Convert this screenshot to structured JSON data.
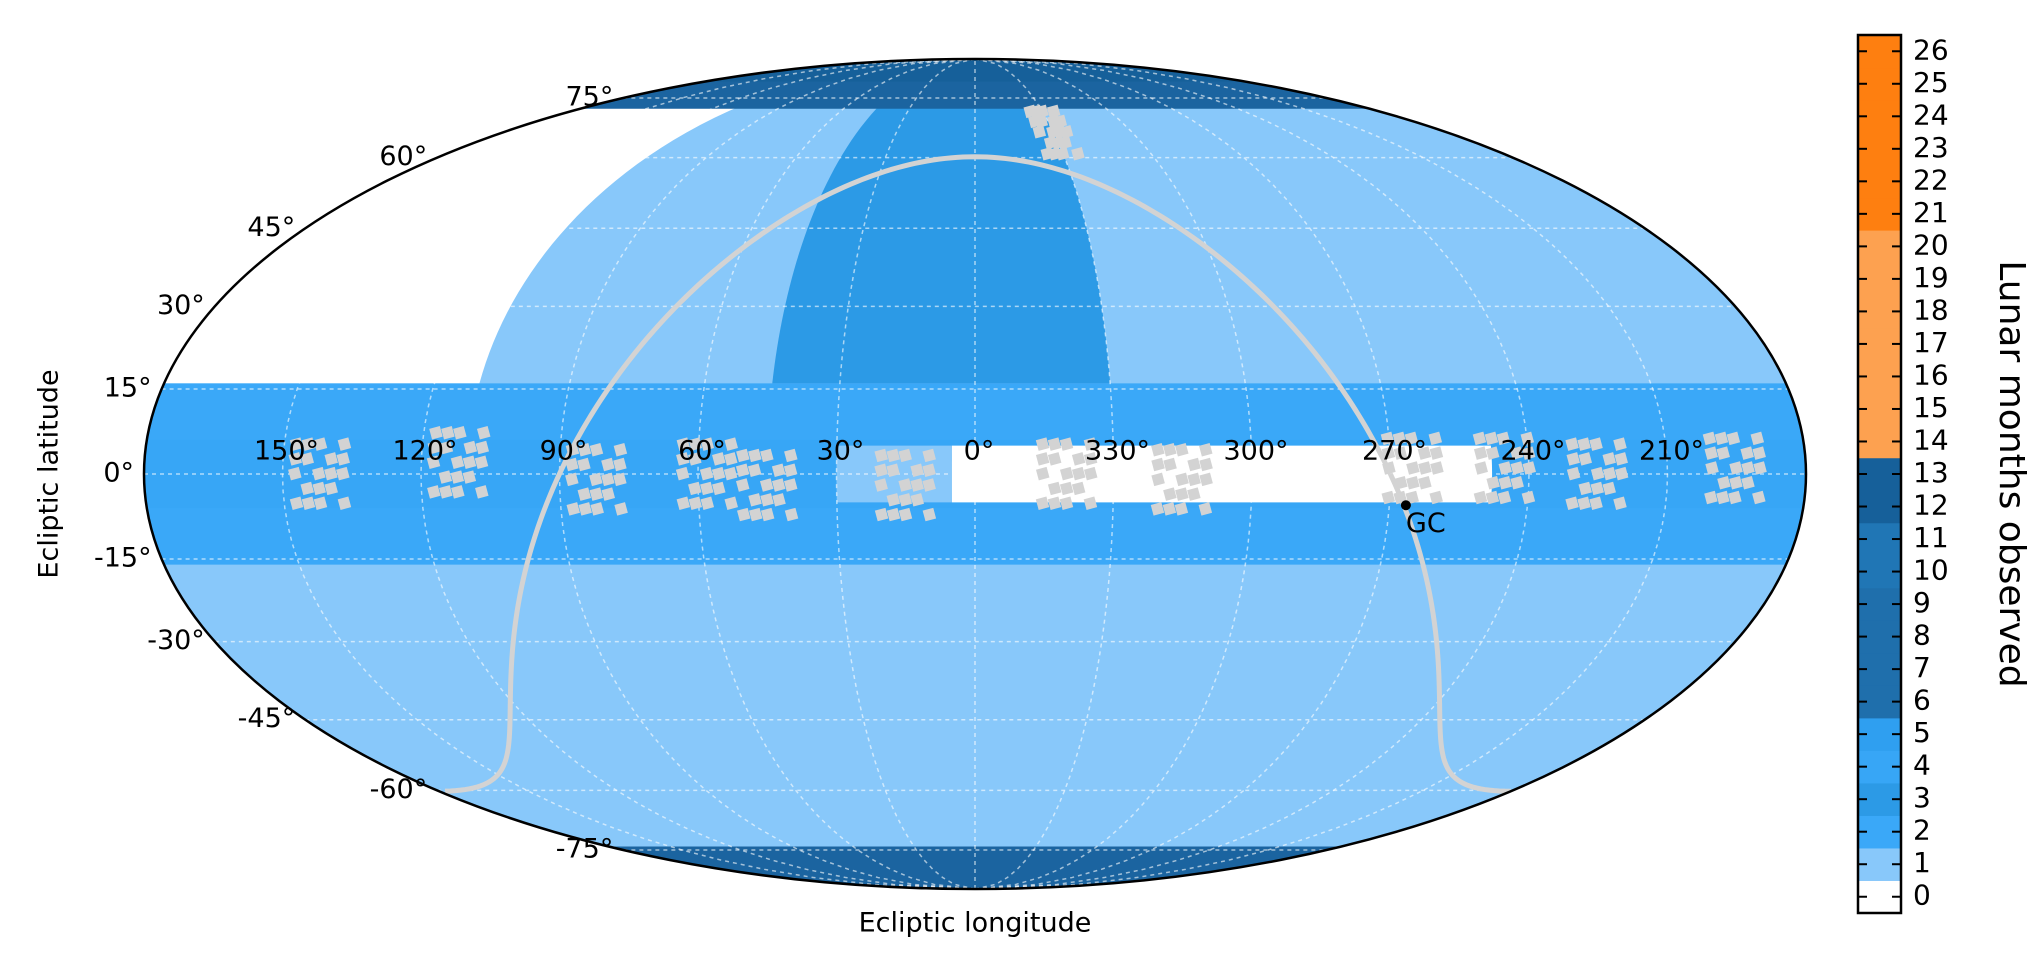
{
  "chart_data": {
    "type": "mollweide",
    "xlabel": "Ecliptic longitude",
    "ylabel": "Ecliptic latitude",
    "xticks": [
      {
        "value": 150,
        "label": "150°"
      },
      {
        "value": 120,
        "label": "120°"
      },
      {
        "value": 90,
        "label": "90°"
      },
      {
        "value": 60,
        "label": "60°"
      },
      {
        "value": 30,
        "label": "30°"
      },
      {
        "value": 0,
        "label": "0°"
      },
      {
        "value": 330,
        "label": "330°"
      },
      {
        "value": 300,
        "label": "300°"
      },
      {
        "value": 270,
        "label": "270°"
      },
      {
        "value": 240,
        "label": "240°"
      },
      {
        "value": 210,
        "label": "210°"
      }
    ],
    "yticks": [
      {
        "value": 75,
        "label": "75°"
      },
      {
        "value": 60,
        "label": "60°"
      },
      {
        "value": 45,
        "label": "45°"
      },
      {
        "value": 30,
        "label": "30°"
      },
      {
        "value": 15,
        "label": "15°"
      },
      {
        "value": 0,
        "label": "0°"
      },
      {
        "value": -15,
        "label": "-15°"
      },
      {
        "value": -30,
        "label": "-30°"
      },
      {
        "value": -45,
        "label": "-45°"
      },
      {
        "value": -60,
        "label": "-60°"
      },
      {
        "value": -75,
        "label": "-75°"
      }
    ],
    "grid": true,
    "colorbar": {
      "label": "Lunar months observed",
      "ticks": [
        0,
        1,
        2,
        3,
        4,
        5,
        6,
        7,
        8,
        9,
        10,
        11,
        12,
        13,
        14,
        15,
        16,
        17,
        18,
        19,
        20,
        21,
        22,
        23,
        24,
        25,
        26
      ],
      "colors": [
        "#ffffff",
        "#88c8fa",
        "#3aa8f8",
        "#2c9ae6",
        "#37a6f6",
        "#2f9ff0",
        "#1f6fac",
        "#1f6fac",
        "#1f6fac",
        "#1f6fac",
        "#2076b5",
        "#2076b5",
        "#16609a",
        "#16609a",
        "#fda150",
        "#fda150",
        "#fda150",
        "#fda150",
        "#fda150",
        "#fda150",
        "#fda150",
        "#fe7f10",
        "#fe7f10",
        "#fe7f10",
        "#fe7f10",
        "#fe7f10",
        "#fe7f10"
      ]
    },
    "annotations": [
      {
        "text": "GC",
        "x": 266.4,
        "y": -5.5
      }
    ]
  }
}
